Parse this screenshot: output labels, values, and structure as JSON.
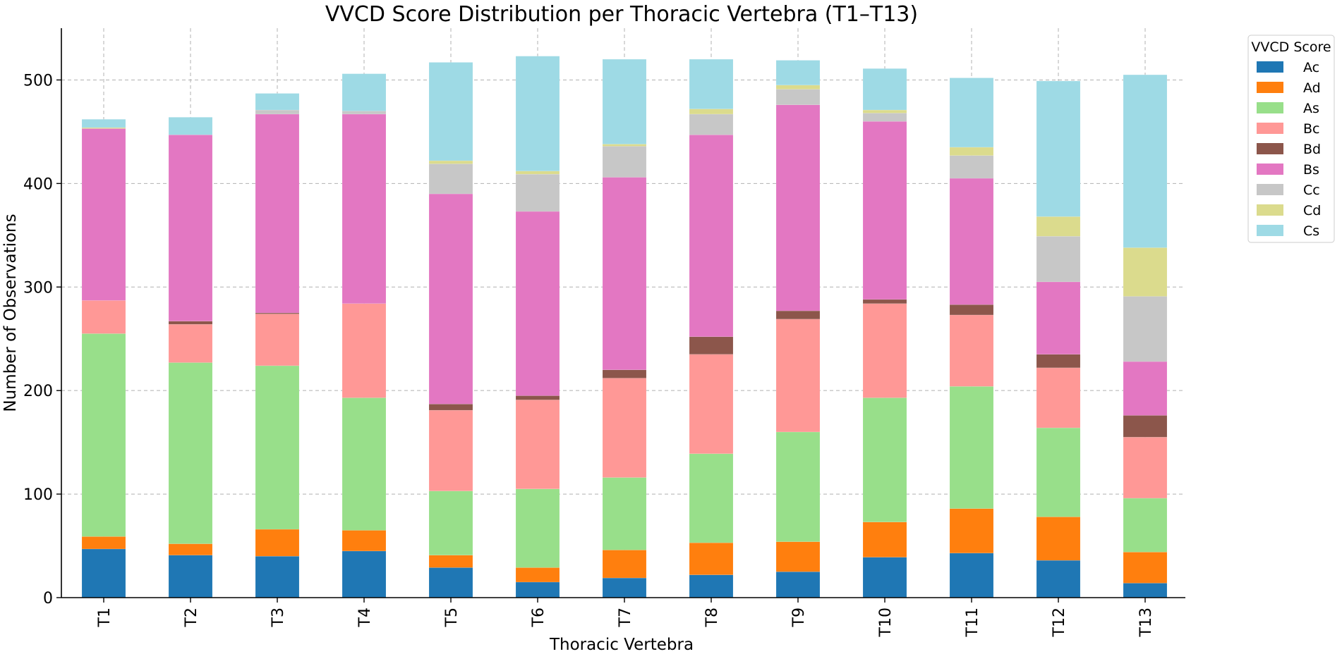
{
  "chart_data": {
    "type": "bar",
    "stacked": true,
    "title": "VVCD Score Distribution per Thoracic Vertebra (T1–T13)",
    "xlabel": "Thoracic Vertebra",
    "ylabel": "Number of Observations",
    "ylim": [
      0,
      550
    ],
    "yticks": [
      0,
      100,
      200,
      300,
      400,
      500
    ],
    "grid": true,
    "legend_title": "VVCD Score",
    "legend_position": "outside-top-right",
    "categories": [
      "T1",
      "T2",
      "T3",
      "T4",
      "T5",
      "T6",
      "T7",
      "T8",
      "T9",
      "T10",
      "T11",
      "T12",
      "T13"
    ],
    "series": [
      {
        "name": "Ac",
        "color": "#1f77b4",
        "values": [
          47,
          41,
          40,
          45,
          29,
          15,
          19,
          22,
          25,
          39,
          43,
          36,
          14
        ]
      },
      {
        "name": "Ad",
        "color": "#ff7f0e",
        "values": [
          12,
          11,
          26,
          20,
          12,
          14,
          27,
          31,
          29,
          34,
          43,
          42,
          30
        ]
      },
      {
        "name": "As",
        "color": "#98df8a",
        "values": [
          196,
          175,
          158,
          128,
          62,
          76,
          70,
          86,
          106,
          120,
          118,
          86,
          52
        ]
      },
      {
        "name": "Bc",
        "color": "#ff9896",
        "values": [
          32,
          37,
          50,
          91,
          78,
          86,
          96,
          96,
          109,
          91,
          69,
          58,
          59
        ]
      },
      {
        "name": "Bd",
        "color": "#8c564b",
        "values": [
          0,
          3,
          1,
          0,
          6,
          4,
          8,
          17,
          8,
          4,
          10,
          13,
          21
        ]
      },
      {
        "name": "Bs",
        "color": "#e377c2",
        "values": [
          166,
          180,
          192,
          183,
          203,
          178,
          186,
          195,
          199,
          172,
          122,
          70,
          52
        ]
      },
      {
        "name": "Cc",
        "color": "#c7c7c7",
        "values": [
          0,
          0,
          4,
          3,
          29,
          36,
          30,
          20,
          15,
          8,
          22,
          44,
          63
        ]
      },
      {
        "name": "Cd",
        "color": "#dbdb8d",
        "values": [
          1,
          0,
          0,
          0,
          3,
          3,
          2,
          5,
          4,
          3,
          8,
          19,
          47
        ]
      },
      {
        "name": "Cs",
        "color": "#9edae5",
        "values": [
          8,
          17,
          16,
          36,
          95,
          111,
          82,
          48,
          24,
          40,
          67,
          131,
          167
        ]
      }
    ]
  }
}
